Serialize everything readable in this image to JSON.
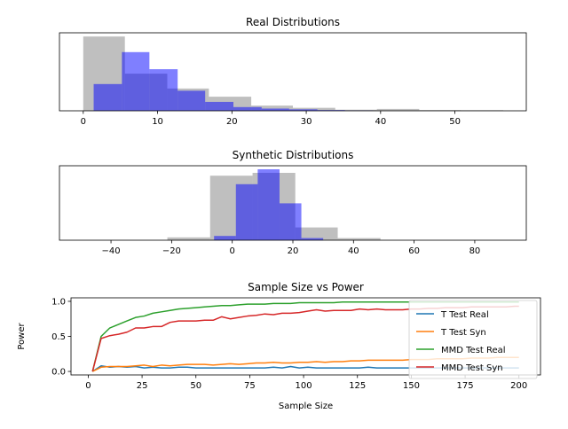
{
  "chart_data": [
    {
      "type": "histogram",
      "title": "Real Distributions",
      "xlim": [
        -3.2,
        59.6
      ],
      "xticks": [
        0,
        10,
        20,
        30,
        40,
        50
      ],
      "yticks_shown": false,
      "ylim": [
        0,
        1.05
      ],
      "series": [
        {
          "color": "#808080",
          "alpha": 0.5,
          "bins": [
            {
              "x0": 0.0,
              "x1": 5.6,
              "h": 1.0
            },
            {
              "x0": 5.6,
              "x1": 11.3,
              "h": 0.5
            },
            {
              "x0": 11.3,
              "x1": 16.9,
              "h": 0.3
            },
            {
              "x0": 16.9,
              "x1": 22.6,
              "h": 0.19
            },
            {
              "x0": 22.6,
              "x1": 28.2,
              "h": 0.07
            },
            {
              "x0": 28.2,
              "x1": 33.9,
              "h": 0.04
            },
            {
              "x0": 33.9,
              "x1": 39.5,
              "h": 0.015
            },
            {
              "x0": 39.5,
              "x1": 45.2,
              "h": 0.025
            },
            {
              "x0": 45.2,
              "x1": 50.8,
              "h": 0.01
            },
            {
              "x0": 50.8,
              "x1": 56.5,
              "h": 0.008
            }
          ]
        },
        {
          "color": "#0000ff",
          "alpha": 0.5,
          "bins": [
            {
              "x0": 1.4,
              "x1": 5.2,
              "h": 0.36
            },
            {
              "x0": 5.2,
              "x1": 8.9,
              "h": 0.79
            },
            {
              "x0": 8.9,
              "x1": 12.7,
              "h": 0.56
            },
            {
              "x0": 12.7,
              "x1": 16.4,
              "h": 0.27
            },
            {
              "x0": 16.4,
              "x1": 20.2,
              "h": 0.12
            },
            {
              "x0": 20.2,
              "x1": 24.0,
              "h": 0.05
            },
            {
              "x0": 24.0,
              "x1": 27.7,
              "h": 0.03
            },
            {
              "x0": 27.7,
              "x1": 31.5,
              "h": 0.02
            },
            {
              "x0": 31.5,
              "x1": 35.2,
              "h": 0.01
            },
            {
              "x0": 35.2,
              "x1": 39.0,
              "h": 0.005
            }
          ]
        }
      ]
    },
    {
      "type": "histogram",
      "title": "Synthetic Distributions",
      "xlim": [
        -57.0,
        97.0
      ],
      "xticks": [
        -40,
        -20,
        0,
        20,
        40,
        60,
        80
      ],
      "yticks_shown": false,
      "ylim": [
        0,
        1.05
      ],
      "series": [
        {
          "color": "#808080",
          "alpha": 0.5,
          "bins": [
            {
              "x0": -21.4,
              "x1": -7.3,
              "h": 0.04
            },
            {
              "x0": -7.3,
              "x1": 6.7,
              "h": 0.91
            },
            {
              "x0": 6.7,
              "x1": 20.8,
              "h": 0.95
            },
            {
              "x0": 20.8,
              "x1": 34.8,
              "h": 0.18
            },
            {
              "x0": 34.8,
              "x1": 48.9,
              "h": 0.03
            }
          ]
        },
        {
          "color": "#0000ff",
          "alpha": 0.5,
          "bins": [
            {
              "x0": -6.0,
              "x1": 1.2,
              "h": 0.06
            },
            {
              "x0": 1.2,
              "x1": 8.4,
              "h": 0.79
            },
            {
              "x0": 8.4,
              "x1": 15.6,
              "h": 1.0
            },
            {
              "x0": 15.6,
              "x1": 22.8,
              "h": 0.52
            },
            {
              "x0": 22.8,
              "x1": 30.0,
              "h": 0.03
            }
          ]
        }
      ]
    },
    {
      "type": "line",
      "title": "Sample Size vs Power",
      "xlabel": "Sample Size",
      "ylabel": "Power",
      "xlim": [
        -8,
        210
      ],
      "ylim": [
        -0.05,
        1.05
      ],
      "xticks": [
        0,
        25,
        50,
        75,
        100,
        125,
        150,
        175,
        200
      ],
      "yticks": [
        0.0,
        0.5,
        1.0
      ],
      "ytick_labels": [
        "0.0",
        "0.5",
        "1.0"
      ],
      "legend": "upper right",
      "x": [
        2,
        6,
        10,
        14,
        18,
        22,
        26,
        30,
        34,
        38,
        42,
        46,
        50,
        54,
        58,
        62,
        66,
        70,
        74,
        78,
        82,
        86,
        90,
        94,
        98,
        102,
        106,
        110,
        114,
        118,
        122,
        126,
        130,
        134,
        138,
        142,
        146,
        150,
        154,
        158,
        162,
        166,
        170,
        174,
        178,
        182,
        186,
        190,
        194,
        198,
        200
      ],
      "series": [
        {
          "name": "T Test Real",
          "color": "#1f77b4",
          "values": [
            0.0,
            0.08,
            0.06,
            0.07,
            0.06,
            0.07,
            0.05,
            0.06,
            0.05,
            0.05,
            0.06,
            0.06,
            0.05,
            0.05,
            0.05,
            0.05,
            0.05,
            0.05,
            0.05,
            0.05,
            0.05,
            0.06,
            0.05,
            0.07,
            0.05,
            0.06,
            0.05,
            0.05,
            0.05,
            0.05,
            0.05,
            0.05,
            0.06,
            0.05,
            0.05,
            0.05,
            0.05,
            0.05,
            0.05,
            0.05,
            0.05,
            0.05,
            0.05,
            0.05,
            0.05,
            0.05,
            0.05,
            0.05,
            0.05,
            0.05,
            0.05
          ]
        },
        {
          "name": "T Test Syn",
          "color": "#ff7f0e",
          "values": [
            0.0,
            0.06,
            0.07,
            0.07,
            0.07,
            0.08,
            0.09,
            0.07,
            0.09,
            0.08,
            0.09,
            0.1,
            0.1,
            0.1,
            0.09,
            0.1,
            0.11,
            0.1,
            0.11,
            0.12,
            0.12,
            0.13,
            0.12,
            0.12,
            0.13,
            0.13,
            0.14,
            0.13,
            0.14,
            0.14,
            0.15,
            0.15,
            0.16,
            0.16,
            0.16,
            0.16,
            0.16,
            0.17,
            0.17,
            0.17,
            0.18,
            0.18,
            0.18,
            0.18,
            0.19,
            0.19,
            0.19,
            0.2,
            0.2,
            0.2,
            0.2
          ]
        },
        {
          "name": "MMD Test Real",
          "color": "#2ca02c",
          "values": [
            0.0,
            0.5,
            0.62,
            0.67,
            0.72,
            0.77,
            0.79,
            0.83,
            0.85,
            0.87,
            0.89,
            0.9,
            0.91,
            0.92,
            0.93,
            0.94,
            0.94,
            0.95,
            0.96,
            0.96,
            0.96,
            0.97,
            0.97,
            0.97,
            0.98,
            0.98,
            0.98,
            0.98,
            0.98,
            0.99,
            0.99,
            0.99,
            0.99,
            0.99,
            0.99,
            0.99,
            0.99,
            0.99,
            0.99,
            0.99,
            0.99,
            0.99,
            0.99,
            0.99,
            0.99,
            0.99,
            0.99,
            0.99,
            0.99,
            0.99,
            0.99
          ]
        },
        {
          "name": "MMD Test Syn",
          "color": "#d62728",
          "values": [
            0.0,
            0.47,
            0.51,
            0.53,
            0.56,
            0.62,
            0.62,
            0.64,
            0.64,
            0.7,
            0.72,
            0.72,
            0.72,
            0.73,
            0.73,
            0.78,
            0.75,
            0.77,
            0.79,
            0.8,
            0.82,
            0.81,
            0.83,
            0.83,
            0.84,
            0.86,
            0.88,
            0.86,
            0.87,
            0.87,
            0.87,
            0.89,
            0.88,
            0.89,
            0.88,
            0.88,
            0.88,
            0.89,
            0.89,
            0.9,
            0.9,
            0.91,
            0.91,
            0.91,
            0.92,
            0.92,
            0.92,
            0.92,
            0.92,
            0.93,
            0.93
          ]
        }
      ]
    }
  ]
}
